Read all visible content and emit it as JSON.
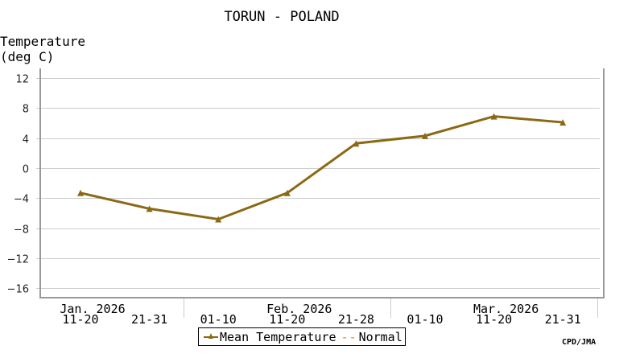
{
  "chart_data": {
    "type": "line",
    "title": "TORUN - POLAND",
    "ylabel": "Temperature (deg C)",
    "ylabel_lines": [
      "Temperature",
      "(deg C)"
    ],
    "xlabel": "",
    "ylim": [
      -16,
      12
    ],
    "yticks": [
      12,
      8,
      4,
      0,
      -4,
      -8,
      -12,
      -16
    ],
    "grid": true,
    "legend_position": "bottom-center",
    "months": [
      {
        "label": "Jan. 2026",
        "under_category_index": 0
      },
      {
        "label": "Feb. 2026",
        "under_category_index": 3
      },
      {
        "label": "Mar. 2026",
        "under_category_index": 6
      }
    ],
    "categories": [
      "11-20",
      "21-31",
      "01-10",
      "11-20",
      "21-28",
      "01-10",
      "11-20",
      "21-31"
    ],
    "series": [
      {
        "name": "Mean Temperature",
        "color": "#8B6914",
        "marker": "triangle",
        "values": [
          -3.3,
          -5.4,
          -6.8,
          -3.3,
          3.3,
          4.3,
          6.9,
          6.1
        ]
      },
      {
        "name": "Normal",
        "color": "#F08020",
        "style": "dashed",
        "values": []
      }
    ]
  },
  "legend": {
    "mean_label": "Mean Temperature",
    "normal_symbol": "--",
    "normal_label": "Normal"
  },
  "credit": "CPD/JMA"
}
